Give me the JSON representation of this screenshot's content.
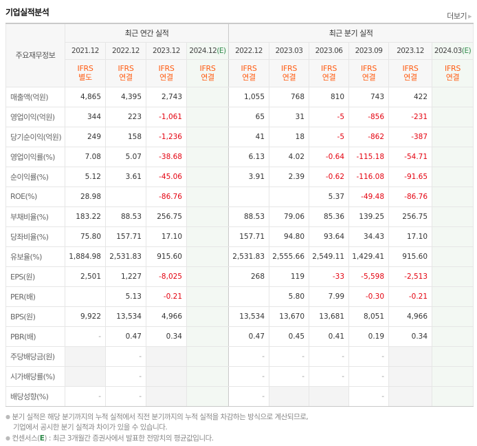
{
  "header": {
    "title": "기업실적분석",
    "more_label": "더보기",
    "more_icon": "triangle-right-icon"
  },
  "table": {
    "row_header_label": "주요재무정보",
    "groups": [
      {
        "label": "최근 연간 실적"
      },
      {
        "label": "최근 분기 실적"
      }
    ],
    "periods": [
      {
        "label": "2021.12",
        "estimate": "",
        "ifrs": "IFRS",
        "basis": "별도"
      },
      {
        "label": "2022.12",
        "estimate": "",
        "ifrs": "IFRS",
        "basis": "연결"
      },
      {
        "label": "2023.12",
        "estimate": "",
        "ifrs": "IFRS",
        "basis": "연결"
      },
      {
        "label": "2024.12",
        "estimate": "(E)",
        "ifrs": "IFRS",
        "basis": "연결"
      },
      {
        "label": "2022.12",
        "estimate": "",
        "ifrs": "IFRS",
        "basis": "연결"
      },
      {
        "label": "2023.03",
        "estimate": "",
        "ifrs": "IFRS",
        "basis": "연결"
      },
      {
        "label": "2023.06",
        "estimate": "",
        "ifrs": "IFRS",
        "basis": "연결"
      },
      {
        "label": "2023.09",
        "estimate": "",
        "ifrs": "IFRS",
        "basis": "연결"
      },
      {
        "label": "2023.12",
        "estimate": "",
        "ifrs": "IFRS",
        "basis": "연결"
      },
      {
        "label": "2024.03",
        "estimate": "(E)",
        "ifrs": "IFRS",
        "basis": "연결"
      }
    ],
    "rows": [
      {
        "label": "매출액(억원)",
        "values": [
          "4,865",
          "4,395",
          "2,743",
          "",
          "1,055",
          "768",
          "810",
          "743",
          "422",
          ""
        ]
      },
      {
        "label": "영업이익(억원)",
        "values": [
          "344",
          "223",
          "-1,061",
          "",
          "65",
          "31",
          "-5",
          "-856",
          "-231",
          ""
        ]
      },
      {
        "label": "당기순이익(억원)",
        "values": [
          "249",
          "158",
          "-1,236",
          "",
          "41",
          "18",
          "-5",
          "-862",
          "-387",
          ""
        ]
      },
      {
        "label": "영업이익률(%)",
        "values": [
          "7.08",
          "5.07",
          "-38.68",
          "",
          "6.13",
          "4.02",
          "-0.64",
          "-115.18",
          "-54.71",
          ""
        ]
      },
      {
        "label": "순이익률(%)",
        "values": [
          "5.12",
          "3.61",
          "-45.06",
          "",
          "3.91",
          "2.39",
          "-0.62",
          "-116.08",
          "-91.65",
          ""
        ]
      },
      {
        "label": "ROE(%)",
        "values": [
          "28.98",
          "",
          "-86.76",
          "",
          "",
          "",
          "5.37",
          "-49.48",
          "-86.76",
          ""
        ]
      },
      {
        "label": "부채비율(%)",
        "values": [
          "183.22",
          "88.53",
          "256.75",
          "",
          "88.53",
          "79.06",
          "85.36",
          "139.25",
          "256.75",
          ""
        ]
      },
      {
        "label": "당좌비율(%)",
        "values": [
          "75.80",
          "157.71",
          "17.10",
          "",
          "157.71",
          "94.80",
          "93.64",
          "34.43",
          "17.10",
          ""
        ]
      },
      {
        "label": "유보율(%)",
        "values": [
          "1,884.98",
          "2,531.83",
          "915.60",
          "",
          "2,531.83",
          "2,555.66",
          "2,549.11",
          "1,429.41",
          "915.60",
          ""
        ]
      },
      {
        "label": "EPS(원)",
        "values": [
          "2,501",
          "1,227",
          "-8,025",
          "",
          "268",
          "119",
          "-33",
          "-5,598",
          "-2,513",
          ""
        ]
      },
      {
        "label": "PER(배)",
        "values": [
          "",
          "5.13",
          "-0.21",
          "",
          "",
          "5.80",
          "7.99",
          "-0.30",
          "-0.21",
          ""
        ]
      },
      {
        "label": "BPS(원)",
        "values": [
          "9,922",
          "13,534",
          "4,966",
          "",
          "13,534",
          "13,670",
          "13,681",
          "8,051",
          "4,966",
          ""
        ]
      },
      {
        "label": "PBR(배)",
        "values": [
          "-",
          "0.47",
          "0.34",
          "",
          "0.47",
          "0.45",
          "0.41",
          "0.19",
          "0.34",
          ""
        ]
      },
      {
        "label": "주당배당금(원)",
        "values": [
          "",
          "-",
          "",
          "",
          "-",
          "-",
          "-",
          "-",
          "",
          ""
        ]
      },
      {
        "label": "시가배당률(%)",
        "values": [
          "",
          "-",
          "",
          "",
          "-",
          "-",
          "-",
          "-",
          "",
          ""
        ]
      },
      {
        "label": "배당성향(%)",
        "values": [
          "-",
          "-",
          "",
          "",
          "-",
          "",
          "",
          "-",
          "",
          ""
        ]
      }
    ]
  },
  "notes": {
    "line1": "분기 실적은 해당 분기까지의 누적 실적에서 직전 분기까지의 누적 실적을 차감하는 방식으로 계산되므로,",
    "line2": "기업에서 공시한 분기 실적과 차이가 있을 수 있습니다.",
    "line3_prefix": "컨센서스(",
    "line3_e": "E",
    "line3_suffix": ") : 최근 3개월간 증권사에서 발표한 전망치의 평균값입니다."
  },
  "colors": {
    "ifrs_orange": "#ff5c12",
    "negative_red": "#e4000e",
    "estimate_green": "#2f8a4a",
    "estimate_bg": "#f3f8f3"
  }
}
